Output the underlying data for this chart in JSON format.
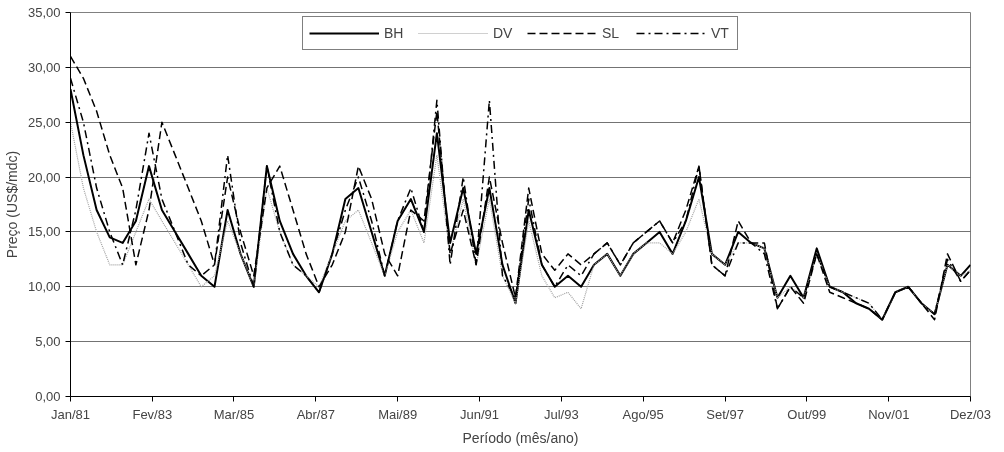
{
  "chart_data": {
    "type": "line",
    "xlabel": "Período (mês/ano)",
    "ylabel": "Preço (US$/mdc)",
    "x": [
      "1981-01",
      "1981-05",
      "1981-09",
      "1982-01",
      "1982-05",
      "1982-09",
      "1983-01",
      "1983-05",
      "1983-09",
      "1984-01",
      "1984-05",
      "1984-09",
      "1985-01",
      "1985-05",
      "1985-09",
      "1986-01",
      "1986-05",
      "1986-09",
      "1987-01",
      "1987-05",
      "1987-09",
      "1988-01",
      "1988-05",
      "1988-09",
      "1989-01",
      "1989-05",
      "1989-09",
      "1990-01",
      "1990-05",
      "1990-09",
      "1991-01",
      "1991-05",
      "1991-09",
      "1992-01",
      "1992-05",
      "1992-09",
      "1993-01",
      "1993-05",
      "1993-09",
      "1994-01",
      "1994-05",
      "1994-09",
      "1995-01",
      "1995-05",
      "1995-09",
      "1996-01",
      "1996-05",
      "1996-09",
      "1997-01",
      "1997-05",
      "1997-09",
      "1998-01",
      "1998-05",
      "1998-09",
      "1999-01",
      "1999-05",
      "1999-09",
      "2000-01",
      "2000-05",
      "2000-09",
      "2001-01",
      "2001-05",
      "2001-09",
      "2002-01",
      "2002-05",
      "2002-09",
      "2003-01",
      "2003-05",
      "2003-09",
      "2003-12"
    ],
    "series": [
      {
        "name": "BH",
        "color": "#000000",
        "line_style": "solid",
        "values": [
          28,
          22,
          17,
          14.5,
          14,
          16,
          21,
          17,
          15,
          13,
          11,
          10,
          17,
          13,
          10,
          21,
          16,
          13,
          11,
          9.5,
          13,
          18,
          19,
          15,
          11,
          16,
          18,
          15,
          24,
          14,
          19,
          13,
          19,
          12,
          8.5,
          17,
          12,
          10,
          11,
          10,
          12,
          13,
          11,
          13,
          14,
          15,
          13,
          16,
          20,
          13,
          12,
          15,
          14,
          13.5,
          9,
          11,
          9,
          13.5,
          10,
          9.5,
          8.5,
          8,
          7,
          9.5,
          10,
          8.5,
          7.5,
          12,
          11,
          12
        ]
      },
      {
        "name": "DV",
        "color": "#a0a0a0",
        "line_style": "dotted",
        "values": [
          25,
          19,
          15,
          12,
          12,
          15,
          18,
          16,
          14,
          12,
          10,
          11,
          16,
          13,
          10,
          19,
          15,
          12,
          11,
          10,
          13,
          16,
          17,
          14,
          11,
          15,
          17,
          14,
          22,
          13,
          18,
          12,
          18,
          11,
          8.5,
          16,
          11,
          9,
          9.5,
          8,
          12,
          13,
          11,
          13,
          14,
          14,
          13,
          15,
          18,
          13,
          12,
          14,
          14,
          13.5,
          9,
          10,
          9,
          13,
          10,
          9.5,
          9,
          8.5,
          7,
          9.5,
          10,
          8.5,
          7.5,
          12,
          11,
          11.5
        ]
      },
      {
        "name": "SL",
        "color": "#000000",
        "line_style": "dashed",
        "values": [
          31,
          29,
          26,
          22,
          19,
          12,
          17,
          25,
          22,
          19,
          16,
          12,
          20,
          15,
          11,
          19,
          21,
          17,
          13,
          10,
          12,
          15,
          21,
          18,
          13,
          11,
          17,
          16,
          26,
          13,
          17,
          12,
          20,
          14,
          9,
          19,
          13,
          11.5,
          13,
          12,
          13,
          14,
          12,
          14,
          15,
          16,
          14,
          17,
          21,
          12,
          11,
          16,
          14,
          14,
          8,
          10,
          8.5,
          13,
          9.5,
          9,
          8.5,
          8,
          7,
          9.5,
          10,
          8.5,
          7,
          13,
          10.5,
          11.5
        ]
      },
      {
        "name": "VT",
        "color": "#000000",
        "line_style": "dashdot",
        "values": [
          29,
          25,
          19,
          15,
          12,
          17,
          24,
          18,
          15,
          12,
          11,
          12,
          22,
          14,
          10,
          21,
          15,
          12,
          11,
          9.5,
          13,
          17,
          20,
          16,
          11,
          16,
          19,
          15,
          27,
          12,
          20,
          12,
          27,
          11,
          9,
          18,
          12,
          10,
          12,
          11,
          13,
          14,
          12,
          14,
          15,
          16,
          14,
          16,
          21,
          12,
          11,
          14,
          14,
          13,
          8,
          10,
          9,
          13,
          10,
          9.5,
          9,
          8.5,
          7,
          9.5,
          10,
          8.5,
          7.5,
          12.5,
          10.5,
          11.5
        ]
      }
    ],
    "xlim": [
      "1981-01",
      "2003-12"
    ],
    "xticks": [
      {
        "value": "1981-01",
        "label": "Jan/81"
      },
      {
        "value": "1983-02",
        "label": "Fev/83"
      },
      {
        "value": "1985-03",
        "label": "Mar/85"
      },
      {
        "value": "1987-04",
        "label": "Abr/87"
      },
      {
        "value": "1989-05",
        "label": "Mai/89"
      },
      {
        "value": "1991-06",
        "label": "Jun/91"
      },
      {
        "value": "1993-07",
        "label": "Jul/93"
      },
      {
        "value": "1995-08",
        "label": "Ago/95"
      },
      {
        "value": "1997-09",
        "label": "Set/97"
      },
      {
        "value": "1999-10",
        "label": "Out/99"
      },
      {
        "value": "2001-11",
        "label": "Nov/01"
      },
      {
        "value": "2003-12",
        "label": "Dez/03"
      }
    ],
    "ylim": [
      0,
      35
    ],
    "yticks": [
      {
        "value": 0,
        "label": "0,00"
      },
      {
        "value": 5,
        "label": "5,00"
      },
      {
        "value": 10,
        "label": "10,00"
      },
      {
        "value": 15,
        "label": "15,00"
      },
      {
        "value": 20,
        "label": "20,00"
      },
      {
        "value": 25,
        "label": "25,00"
      },
      {
        "value": 30,
        "label": "30,00"
      },
      {
        "value": 35,
        "label": "35,00"
      }
    ],
    "grid": "y",
    "legend": "top",
    "marker": "none"
  }
}
